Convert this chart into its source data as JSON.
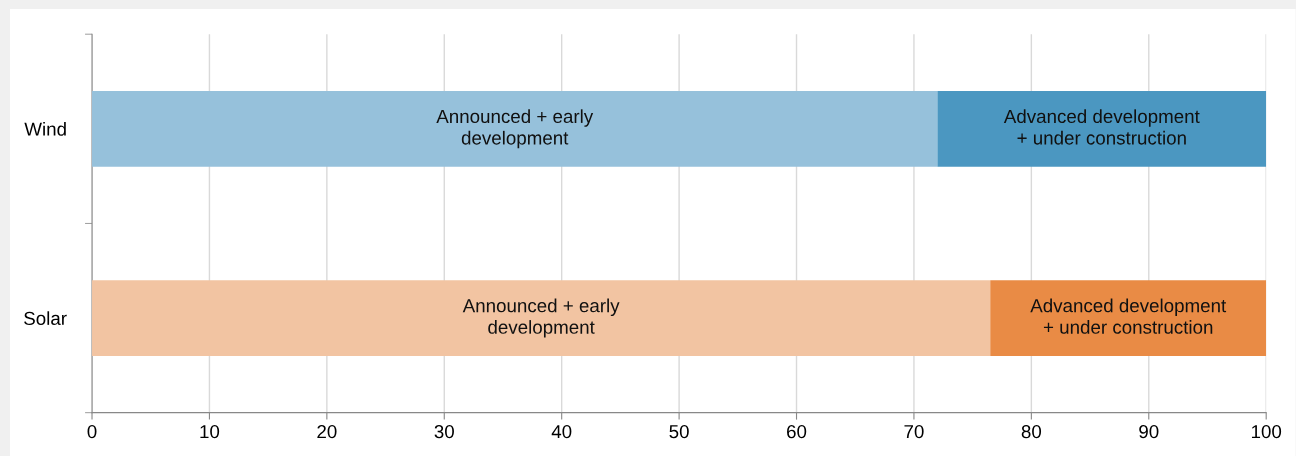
{
  "chart_data": {
    "type": "bar",
    "orientation": "horizontal",
    "stacked": true,
    "categories": [
      "Wind",
      "Solar"
    ],
    "series": [
      {
        "name": "Announced + early development",
        "colors": [
          "#96c1db",
          "#f2c4a2"
        ],
        "values": [
          72,
          76.5
        ]
      },
      {
        "name": "Advanced development + under construction",
        "colors": [
          "#4b97c1",
          "#e98b45"
        ],
        "values": [
          28,
          23.5
        ]
      }
    ],
    "xlim": [
      0,
      100
    ],
    "xticks": [
      0,
      10,
      20,
      30,
      40,
      50,
      60,
      70,
      80,
      90,
      100
    ],
    "grid": "x",
    "legend": false
  }
}
